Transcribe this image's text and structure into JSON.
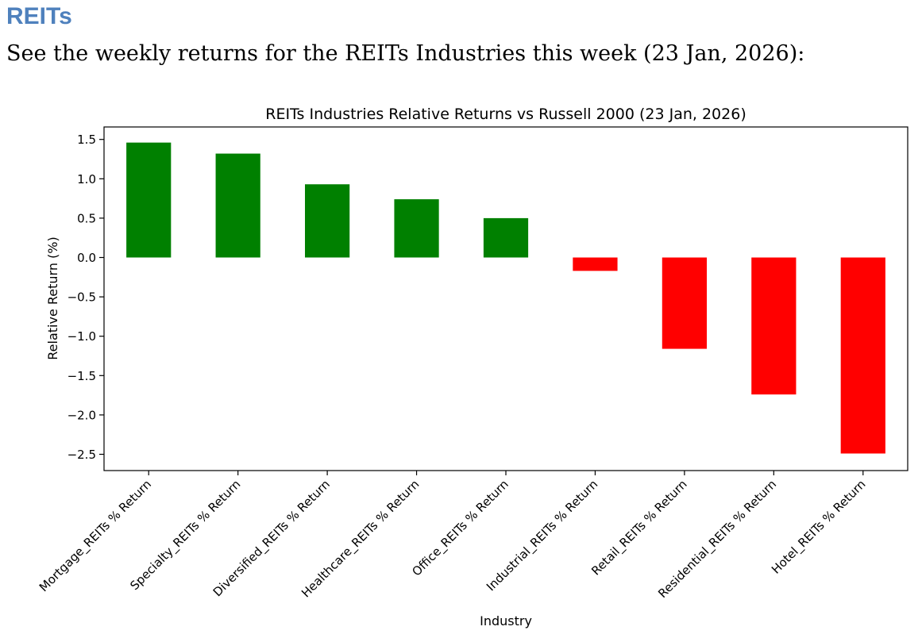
{
  "page": {
    "heading": "REITs",
    "intro": "See the weekly returns for the REITs Industries this week (23 Jan, 2026):"
  },
  "colors": {
    "positive": "#008000",
    "negative": "#ff0000",
    "heading": "#4f81bd"
  },
  "chart_data": {
    "type": "bar",
    "title": "REITs Industries Relative Returns vs Russell 2000 (23 Jan, 2026)",
    "xlabel": "Industry",
    "ylabel": "Relative Return (%)",
    "ylim": [
      -2.7,
      1.65
    ],
    "yticks": [
      1.5,
      1.0,
      0.5,
      0.0,
      -0.5,
      -1.0,
      -1.5,
      -2.0,
      -2.5
    ],
    "ytick_labels": [
      "1.5",
      "1.0",
      "0.5",
      "0.0",
      "−0.5",
      "−1.0",
      "−1.5",
      "−2.0",
      "−2.5"
    ],
    "categories": [
      "Mortgage_REITs % Return",
      "Specialty_REITs % Return",
      "Diversified_REITs % Return",
      "Healthcare_REITs % Return",
      "Office_REITs % Return",
      "Industrial_REITs % Return",
      "Retail_REITs % Return",
      "Residential_REITs % Return",
      "Hotel_REITs % Return"
    ],
    "values": [
      1.46,
      1.32,
      0.93,
      0.74,
      0.5,
      -0.17,
      -1.16,
      -1.74,
      -2.49
    ],
    "grid": false,
    "legend": false
  }
}
